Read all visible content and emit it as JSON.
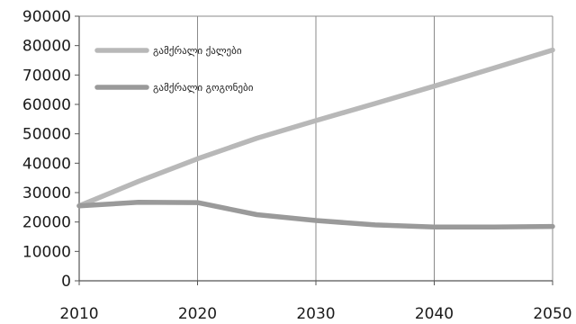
{
  "chart_data": {
    "type": "line",
    "title": "",
    "xlabel": "",
    "ylabel": "",
    "x": [
      2010,
      2015,
      2020,
      2025,
      2030,
      2035,
      2040,
      2045,
      2050
    ],
    "xticks": [
      2010,
      2020,
      2030,
      2040,
      2050
    ],
    "xlim": [
      2010,
      2050
    ],
    "ylim": [
      0,
      90000
    ],
    "yticks": [
      0,
      10000,
      20000,
      30000,
      40000,
      50000,
      60000,
      70000,
      80000,
      90000
    ],
    "grid": "vertical",
    "legend_position": "top-left",
    "series": [
      {
        "name": "გამქრალი ქალები",
        "color": "#b8b8b8",
        "values": [
          25500,
          33800,
          41500,
          48500,
          54500,
          60300,
          66200,
          72300,
          78500
        ]
      },
      {
        "name": "გამქრალი გოგონები",
        "color": "#9a9a9a",
        "values": [
          25500,
          26700,
          26600,
          22500,
          20500,
          19000,
          18300,
          18300,
          18500
        ]
      }
    ]
  }
}
